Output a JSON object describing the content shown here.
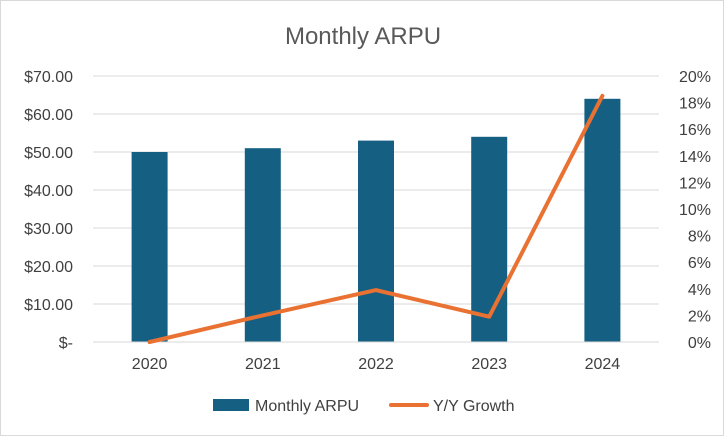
{
  "chart_data": {
    "type": "bar",
    "title": "Monthly ARPU",
    "categories": [
      "2020",
      "2021",
      "2022",
      "2023",
      "2024"
    ],
    "series": [
      {
        "name": "Monthly ARPU",
        "type": "bar",
        "axis": "left",
        "color": "#156082",
        "values": [
          50.0,
          51.0,
          53.0,
          54.0,
          64.0
        ]
      },
      {
        "name": "Y/Y Growth",
        "type": "line",
        "axis": "right",
        "color": "#E97132",
        "values": [
          0.0,
          2.0,
          3.9,
          1.9,
          18.5
        ]
      }
    ],
    "y_left": {
      "ylim": [
        0,
        70
      ],
      "ticks": [
        0,
        10,
        20,
        30,
        40,
        50,
        60,
        70
      ],
      "tick_labels": [
        "$-",
        "$10.00",
        "$20.00",
        "$30.00",
        "$40.00",
        "$50.00",
        "$60.00",
        "$70.00"
      ]
    },
    "y_right": {
      "ylim": [
        0,
        20
      ],
      "ticks": [
        0,
        2,
        4,
        6,
        8,
        10,
        12,
        14,
        16,
        18,
        20
      ],
      "tick_labels": [
        "0%",
        "2%",
        "4%",
        "6%",
        "8%",
        "10%",
        "12%",
        "14%",
        "16%",
        "18%",
        "20%"
      ]
    },
    "grid": true,
    "legend_position": "bottom"
  }
}
